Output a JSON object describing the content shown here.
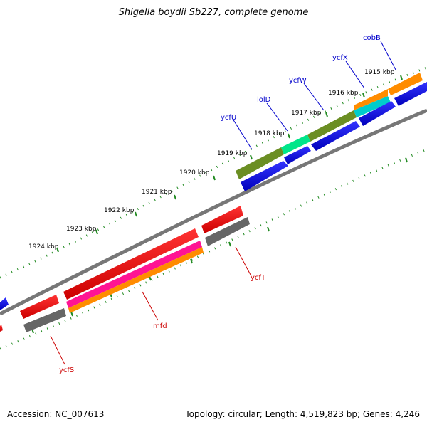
{
  "title": "Shigella boydii Sb227, complete genome",
  "footer": {
    "accession": "Accession: NC_007613",
    "topology": "Topology: circular; Length: 4,519,823 bp; Genes: 4,246"
  },
  "kbp_labels": [
    "1915 kbp",
    "1916 kbp",
    "1917 kbp",
    "1918 kbp",
    "1919 kbp",
    "1920 kbp",
    "1921 kbp",
    "1922 kbp",
    "1923 kbp",
    "1924 kbp"
  ],
  "genes": {
    "forward": [
      {
        "name": "cobB",
        "color": "#0000cc"
      },
      {
        "name": "ycfX",
        "color": "#0000cc"
      },
      {
        "name": "ycfW",
        "color": "#0000cc"
      },
      {
        "name": "lolD",
        "color": "#0000cc"
      },
      {
        "name": "ycfU",
        "color": "#0000cc"
      }
    ],
    "reverse": [
      {
        "name": "ycfT",
        "color": "#cc0000"
      },
      {
        "name": "mfd",
        "color": "#cc0000"
      },
      {
        "name": "ycfS",
        "color": "#cc0000"
      }
    ]
  },
  "colors": {
    "forward_cds": "#0000ee",
    "reverse_cds": "#ee0000",
    "olive": "#6b8e23",
    "spring_green": "#00e68a",
    "orange": "#ff8c00",
    "cyan": "#00cccc",
    "magenta": "#ff1493",
    "gray": "#666666",
    "tick_green": "#228b22"
  }
}
